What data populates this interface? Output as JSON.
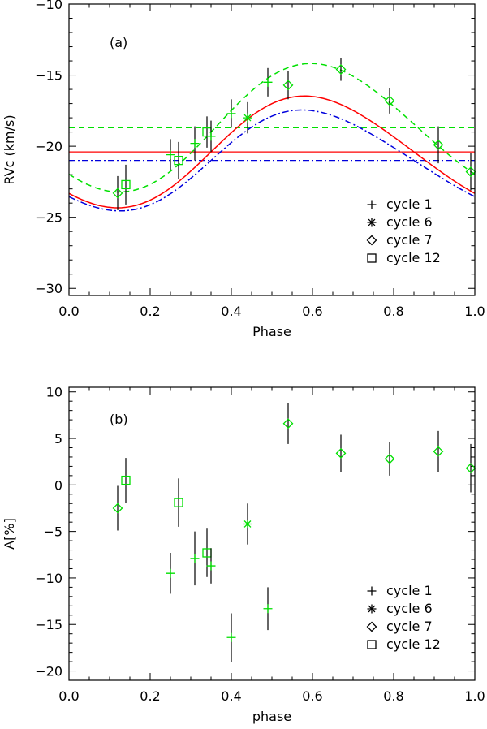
{
  "chart_data": [
    {
      "type": "line",
      "panel_label": "(a)",
      "xlabel": "Phase",
      "ylabel": "RVc  (km/s)",
      "xlim": [
        0.0,
        1.0
      ],
      "ylim": [
        -30.5,
        -10
      ],
      "x_ticks": [
        0.0,
        0.2,
        0.4,
        0.6,
        0.8,
        1.0
      ],
      "x_tick_labels": [
        "0.0",
        "0.2",
        "0.4",
        "0.6",
        "0.8",
        "1.0"
      ],
      "y_ticks": [
        -30,
        -25,
        -20,
        -15,
        -10
      ],
      "y_tick_labels": [
        "−30",
        "−25",
        "−20",
        "−15",
        "−10"
      ],
      "grid": false,
      "legend_position": "bottom-right",
      "legend": [
        {
          "marker": "plus",
          "label": "cycle  1"
        },
        {
          "marker": "star",
          "label": "cycle  6"
        },
        {
          "marker": "diamond",
          "label": "cycle  7"
        },
        {
          "marker": "square",
          "label": "cycle  12"
        }
      ],
      "curves": [
        {
          "color": "#00e000",
          "style": "dashed",
          "mean": -18.7,
          "amp": 4.5,
          "phase0": 0.36,
          "harm2": 0.2
        },
        {
          "color": "#ff0000",
          "style": "solid",
          "mean": -20.4,
          "amp": 3.9,
          "phase0": 0.35,
          "harm2": 0.25
        },
        {
          "color": "#0000dd",
          "style": "dashdot",
          "mean": -21.0,
          "amp": 3.5,
          "phase0": 0.35,
          "harm2": 0.3
        }
      ],
      "hlines": [
        {
          "y": -18.7,
          "color": "#00e000",
          "style": "dashed"
        },
        {
          "y": -20.4,
          "color": "#ff0000",
          "style": "solid"
        },
        {
          "y": -21.0,
          "color": "#0000dd",
          "style": "dashdot"
        }
      ],
      "points": [
        {
          "x": 0.12,
          "y": -23.3,
          "err": 1.2,
          "marker": "diamond"
        },
        {
          "x": 0.14,
          "y": -22.7,
          "err": 1.4,
          "marker": "square"
        },
        {
          "x": 0.25,
          "y": -20.6,
          "err": 1.1,
          "marker": "plus"
        },
        {
          "x": 0.27,
          "y": -21.0,
          "err": 1.3,
          "marker": "square"
        },
        {
          "x": 0.31,
          "y": -19.8,
          "err": 1.2,
          "marker": "plus"
        },
        {
          "x": 0.34,
          "y": -19.0,
          "err": 1.1,
          "marker": "square"
        },
        {
          "x": 0.35,
          "y": -19.3,
          "err": 1.1,
          "marker": "plus"
        },
        {
          "x": 0.4,
          "y": -17.7,
          "err": 1.0,
          "marker": "plus"
        },
        {
          "x": 0.44,
          "y": -18.0,
          "err": 1.1,
          "marker": "star"
        },
        {
          "x": 0.49,
          "y": -15.5,
          "err": 1.0,
          "marker": "plus"
        },
        {
          "x": 0.54,
          "y": -15.7,
          "err": 1.0,
          "marker": "diamond"
        },
        {
          "x": 0.67,
          "y": -14.6,
          "err": 0.8,
          "marker": "diamond"
        },
        {
          "x": 0.79,
          "y": -16.8,
          "err": 0.9,
          "marker": "diamond"
        },
        {
          "x": 0.91,
          "y": -19.9,
          "err": 1.3,
          "marker": "diamond"
        },
        {
          "x": 0.99,
          "y": -21.8,
          "err": 1.3,
          "marker": "diamond"
        }
      ]
    },
    {
      "type": "scatter",
      "panel_label": "(b)",
      "xlabel": "phase",
      "ylabel": "A[%]",
      "xlim": [
        0.0,
        1.0
      ],
      "ylim": [
        -21,
        10.5
      ],
      "x_ticks": [
        0.0,
        0.2,
        0.4,
        0.6,
        0.8,
        1.0
      ],
      "x_tick_labels": [
        "0.0",
        "0.2",
        "0.4",
        "0.6",
        "0.8",
        "1.0"
      ],
      "y_ticks": [
        -20,
        -15,
        -10,
        -5,
        0,
        5,
        10
      ],
      "y_tick_labels": [
        "−20",
        "−15",
        "−10",
        "−5",
        "0",
        "5",
        "10"
      ],
      "grid": false,
      "legend_position": "bottom-right",
      "legend": [
        {
          "marker": "plus",
          "label": "cycle  1"
        },
        {
          "marker": "star",
          "label": "cycle  6"
        },
        {
          "marker": "diamond",
          "label": "cycle  7"
        },
        {
          "marker": "square",
          "label": "cycle  12"
        }
      ],
      "curves": [],
      "hlines": [],
      "points": [
        {
          "x": 0.12,
          "y": -2.5,
          "err": 2.4,
          "marker": "diamond"
        },
        {
          "x": 0.14,
          "y": 0.5,
          "err": 2.4,
          "marker": "square"
        },
        {
          "x": 0.25,
          "y": -9.5,
          "err": 2.2,
          "marker": "plus"
        },
        {
          "x": 0.27,
          "y": -1.9,
          "err": 2.6,
          "marker": "square"
        },
        {
          "x": 0.31,
          "y": -7.9,
          "err": 2.9,
          "marker": "plus"
        },
        {
          "x": 0.34,
          "y": -7.3,
          "err": 2.6,
          "marker": "square"
        },
        {
          "x": 0.35,
          "y": -8.7,
          "err": 1.9,
          "marker": "plus"
        },
        {
          "x": 0.4,
          "y": -16.4,
          "err": 2.6,
          "marker": "plus"
        },
        {
          "x": 0.44,
          "y": -4.2,
          "err": 2.2,
          "marker": "star"
        },
        {
          "x": 0.49,
          "y": -13.3,
          "err": 2.3,
          "marker": "plus"
        },
        {
          "x": 0.54,
          "y": 6.6,
          "err": 2.2,
          "marker": "diamond"
        },
        {
          "x": 0.67,
          "y": 3.4,
          "err": 2.0,
          "marker": "diamond"
        },
        {
          "x": 0.79,
          "y": 2.8,
          "err": 1.8,
          "marker": "diamond"
        },
        {
          "x": 0.91,
          "y": 3.6,
          "err": 2.2,
          "marker": "diamond"
        },
        {
          "x": 0.99,
          "y": 1.8,
          "err": 2.6,
          "marker": "diamond"
        }
      ]
    }
  ]
}
